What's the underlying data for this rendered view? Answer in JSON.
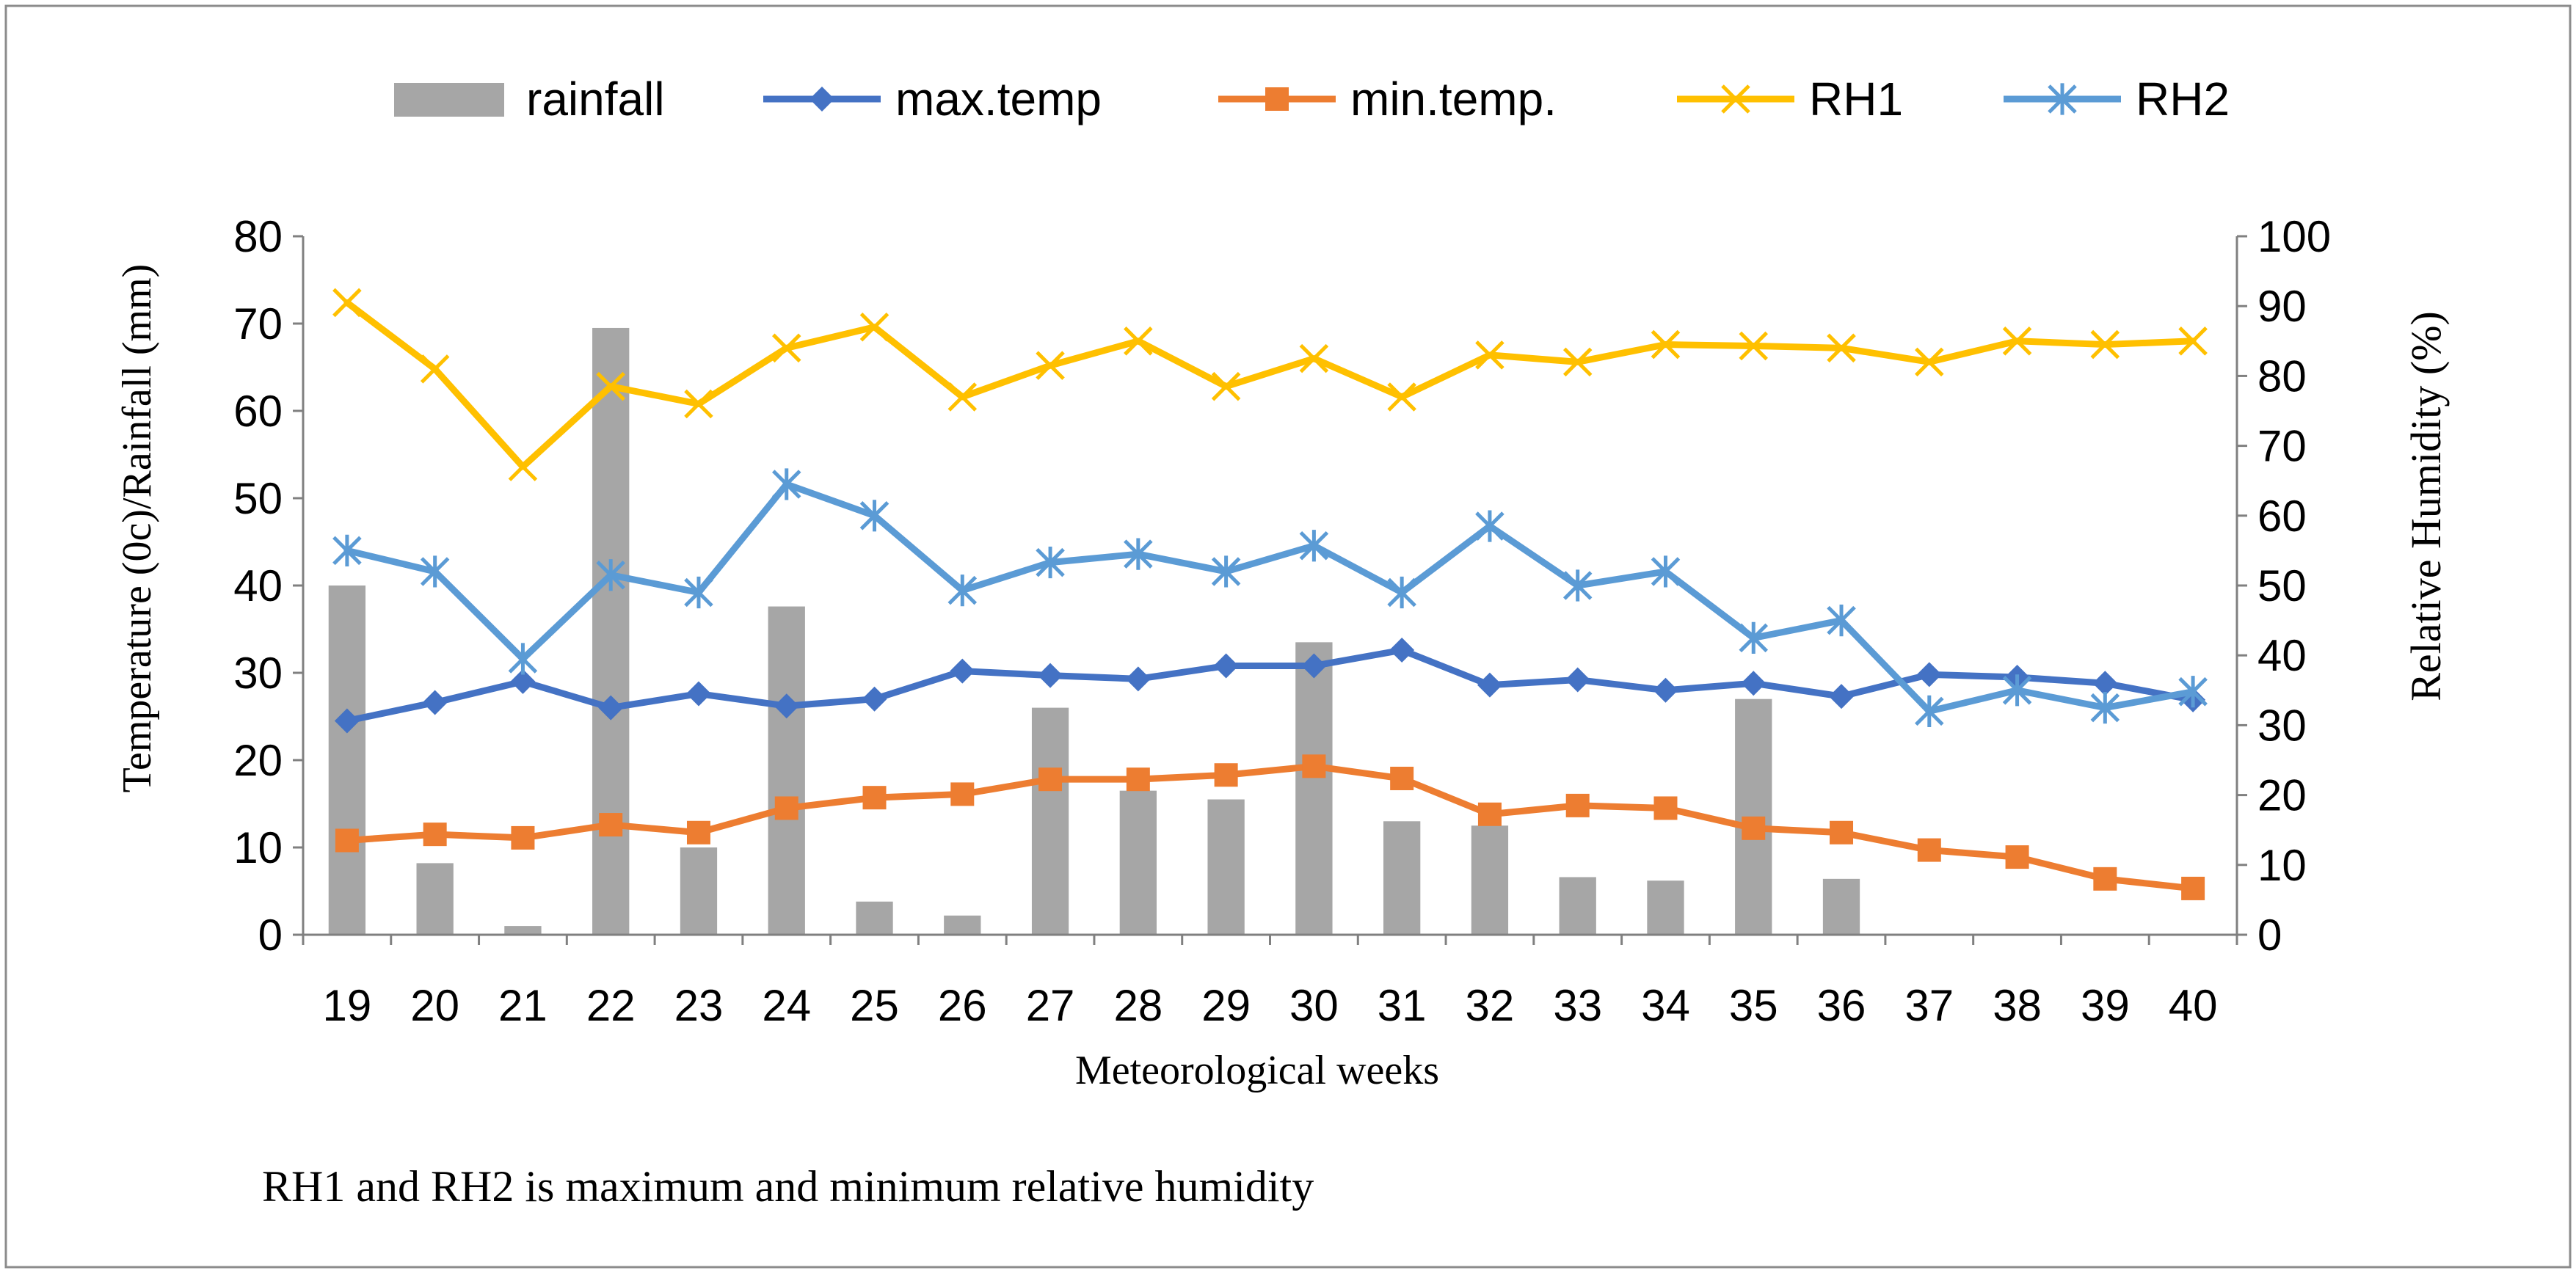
{
  "chart_data": {
    "type": "bar-line-combo",
    "categories": [
      "19",
      "20",
      "21",
      "22",
      "23",
      "24",
      "25",
      "26",
      "27",
      "28",
      "29",
      "30",
      "31",
      "32",
      "33",
      "34",
      "35",
      "36",
      "37",
      "38",
      "39",
      "40"
    ],
    "xlabel": "Meteorological weeks",
    "ylabel_left": "Temperature (0c)/Rainfall (mm)",
    "ylabel_right": "Relative Humidity (%)",
    "ylim_left": [
      0,
      80
    ],
    "ylim_right": [
      0,
      100
    ],
    "yticks_left": [
      0,
      10,
      20,
      30,
      40,
      50,
      60,
      70,
      80
    ],
    "yticks_right": [
      0,
      10,
      20,
      30,
      40,
      50,
      60,
      70,
      80,
      90,
      100
    ],
    "series": [
      {
        "name": "rainfall",
        "kind": "bar",
        "axis": "left",
        "color": "#a6a6a6",
        "values": [
          40,
          8.2,
          1,
          69.5,
          10,
          37.6,
          3.8,
          2.2,
          26,
          16.5,
          15.5,
          33.5,
          13,
          12.5,
          6.6,
          6.2,
          27,
          6.4,
          0,
          0,
          0,
          0
        ]
      },
      {
        "name": "max.temp",
        "kind": "line",
        "axis": "left",
        "marker": "diamond",
        "color": "#4472c4",
        "values": [
          24.5,
          26.6,
          29,
          26,
          27.6,
          26.2,
          27,
          30.2,
          29.7,
          29.3,
          30.8,
          30.8,
          32.6,
          28.6,
          29.2,
          28,
          28.8,
          27.3,
          29.8,
          29.5,
          28.8,
          26.9
        ]
      },
      {
        "name": "min.temp.",
        "kind": "line",
        "axis": "left",
        "marker": "square",
        "color": "#ed7d31",
        "values": [
          10.8,
          11.5,
          11.1,
          12.6,
          11.7,
          14.5,
          15.7,
          16.1,
          17.8,
          17.8,
          18.3,
          19.3,
          17.9,
          13.8,
          14.8,
          14.5,
          12.2,
          11.7,
          9.7,
          8.9,
          6.4,
          5.3
        ]
      },
      {
        "name": "RH1",
        "kind": "line",
        "axis": "right",
        "marker": "x",
        "color": "#ffc000",
        "values": [
          90.5,
          81,
          67,
          78.5,
          76,
          84,
          87,
          77,
          81.5,
          85,
          78.5,
          82.5,
          77,
          83,
          82,
          84.5,
          84.3,
          84,
          82,
          85,
          84.5,
          85
        ]
      },
      {
        "name": "RH2",
        "kind": "line",
        "axis": "right",
        "marker": "asterisk",
        "color": "#5b9bd5",
        "values": [
          55,
          52,
          39.5,
          51.5,
          49,
          64.5,
          60,
          49.3,
          53.3,
          54.5,
          52,
          55.7,
          49,
          58.5,
          50,
          52,
          42.5,
          45,
          32,
          35,
          32.5,
          34.8
        ]
      }
    ],
    "legend_position": "top",
    "grid": false,
    "annotation": "RH1 and RH2 is maximum and minimum relative humidity"
  }
}
